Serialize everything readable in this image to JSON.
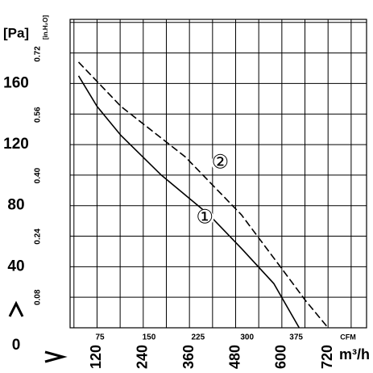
{
  "chart_data": {
    "type": "line",
    "y_label": "[Pa]",
    "y2_label": "[in.H₂O]",
    "x_label": "m³/h",
    "x2_label": "CFM",
    "xlim": [
      50,
      820
    ],
    "xticks": [
      120,
      240,
      360,
      480,
      600,
      720
    ],
    "x2lim": [
      29.4,
      482.6
    ],
    "x2ticks": [
      75,
      150,
      225,
      300,
      375
    ],
    "ylim": [
      0,
      202
    ],
    "yticks": [
      0,
      40,
      80,
      120,
      160
    ],
    "y2lim": [
      0,
      0.811
    ],
    "y2ticks": [
      0.08,
      0.24,
      {
        "value": 0.4,
        "label": "0.40"
      },
      0.56,
      0.72
    ],
    "grid_x": [
      60,
      120,
      180,
      240,
      300,
      360,
      420,
      480,
      540,
      600,
      660,
      720,
      780
    ],
    "grid_y": [
      20,
      40,
      60,
      80,
      100,
      120,
      140,
      160,
      180,
      200
    ],
    "series": [
      {
        "name": "①",
        "color": "#000000",
        "dash": false,
        "x": [
          72,
          120,
          182,
          287,
          411,
          495,
          579,
          645
        ],
        "values": [
          165,
          145,
          126,
          100,
          74,
          52,
          29,
          0
        ]
      },
      {
        "name": "②",
        "color": "#000000",
        "dash": true,
        "x": [
          72,
          182,
          349,
          495,
          599,
          661,
          720
        ],
        "values": [
          174,
          145,
          112,
          74,
          39,
          18,
          0
        ]
      }
    ],
    "label_positions": [
      [
        400,
        72
      ],
      [
        440,
        108
      ]
    ]
  }
}
